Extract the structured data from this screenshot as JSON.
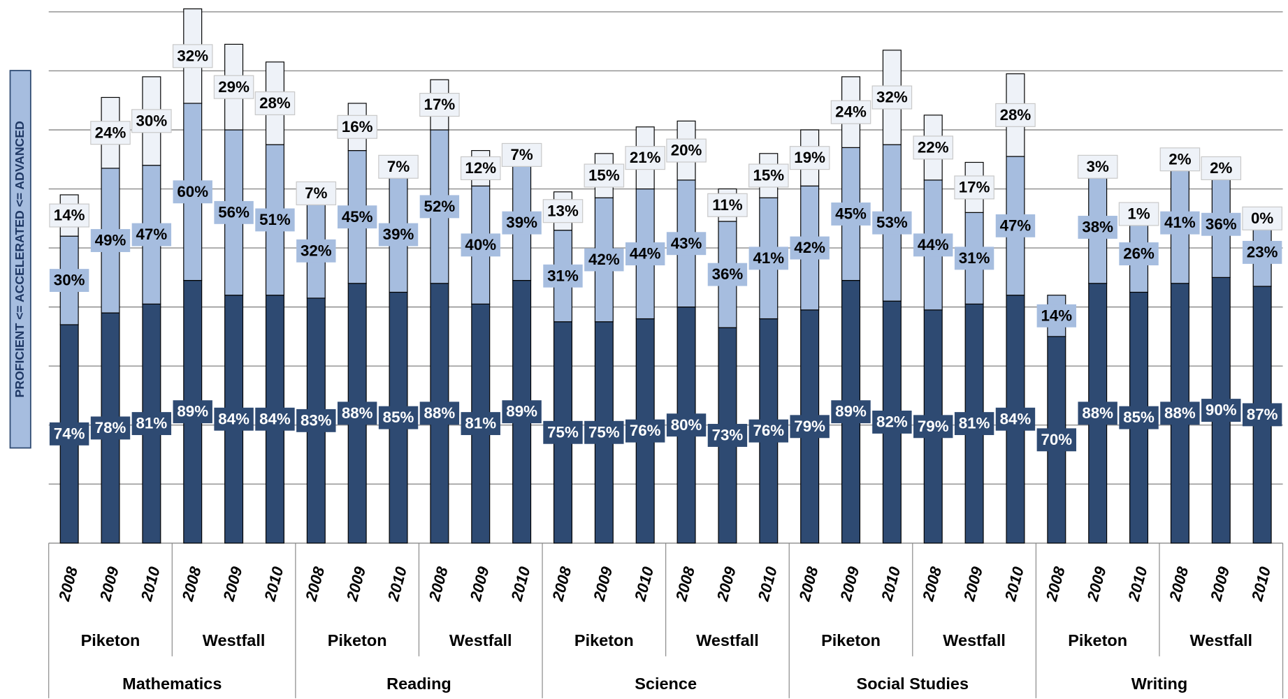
{
  "chart_data": {
    "type": "stacked_bar",
    "y_label": "PROFICIENT <= ACCELERATED <= ADVANCED",
    "categories": [
      "2008",
      "2009",
      "2010",
      "2008",
      "2009",
      "2010",
      "2008",
      "2009",
      "2010",
      "2008",
      "2009",
      "2010",
      "2008",
      "2009",
      "2010",
      "2008",
      "2009",
      "2010",
      "2008",
      "2009",
      "2010",
      "2008",
      "2009",
      "2010",
      "2008",
      "2009",
      "2010",
      "2008",
      "2009",
      "2010"
    ],
    "school_groups": [
      "Piketon",
      "Westfall",
      "Piketon",
      "Westfall",
      "Piketon",
      "Westfall",
      "Piketon",
      "Westfall",
      "Piketon",
      "Westfall"
    ],
    "subject_groups": [
      "Mathematics",
      "Reading",
      "Science",
      "Social Studies",
      "Writing"
    ],
    "series": [
      {
        "name": "Proficient",
        "color": "#2e4a72",
        "label_color": "#ffffff",
        "values": [
          74,
          78,
          81,
          89,
          84,
          84,
          83,
          88,
          85,
          88,
          81,
          89,
          75,
          75,
          76,
          80,
          73,
          76,
          79,
          89,
          82,
          79,
          81,
          84,
          70,
          88,
          85,
          88,
          90,
          87
        ],
        "value_labels": [
          "74%",
          "78%",
          "81%",
          "89%",
          "84%",
          "84%",
          "83%",
          "88%",
          "85%",
          "88%",
          "81%",
          "89%",
          "75%",
          "75%",
          "76%",
          "80%",
          "73%",
          "76%",
          "79%",
          "89%",
          "82%",
          "79%",
          "81%",
          "84%",
          "70%",
          "88%",
          "85%",
          "88%",
          "90%",
          "87%"
        ]
      },
      {
        "name": "Accelerated",
        "color": "#a6bddf",
        "label_color": "#000000",
        "values": [
          30,
          49,
          47,
          60,
          56,
          51,
          32,
          45,
          39,
          52,
          40,
          39,
          31,
          42,
          44,
          43,
          36,
          41,
          42,
          45,
          53,
          44,
          31,
          47,
          14,
          38,
          26,
          41,
          36,
          23
        ],
        "value_labels": [
          "30%",
          "49%",
          "47%",
          "60%",
          "56%",
          "51%",
          "32%",
          "45%",
          "39%",
          "52%",
          "40%",
          "39%",
          "31%",
          "42%",
          "44%",
          "43%",
          "36%",
          "41%",
          "42%",
          "45%",
          "53%",
          "44%",
          "31%",
          "47%",
          "14%",
          "38%",
          "26%",
          "41%",
          "36%",
          "23%"
        ]
      },
      {
        "name": "Advanced",
        "color": "#eef2f8",
        "label_color": "#000000",
        "values": [
          14,
          24,
          30,
          32,
          29,
          28,
          7,
          16,
          7,
          17,
          12,
          7,
          13,
          15,
          21,
          20,
          11,
          15,
          19,
          24,
          32,
          22,
          17,
          28,
          null,
          3,
          1,
          2,
          2,
          0
        ],
        "value_labels": [
          "14%",
          "24%",
          "30%",
          "32%",
          "29%",
          "28%",
          "7%",
          "16%",
          "7%",
          "17%",
          "12%",
          "7%",
          "13%",
          "15%",
          "21%",
          "20%",
          "11%",
          "15%",
          "19%",
          "24%",
          "32%",
          "22%",
          "17%",
          "28%",
          null,
          "3%",
          "1%",
          "2%",
          "2%",
          "0%"
        ]
      }
    ],
    "ylim": [
      0,
      184
    ],
    "yticks": [
      0,
      20,
      40,
      60,
      80,
      100,
      120,
      140,
      160,
      180
    ],
    "grid": true
  }
}
